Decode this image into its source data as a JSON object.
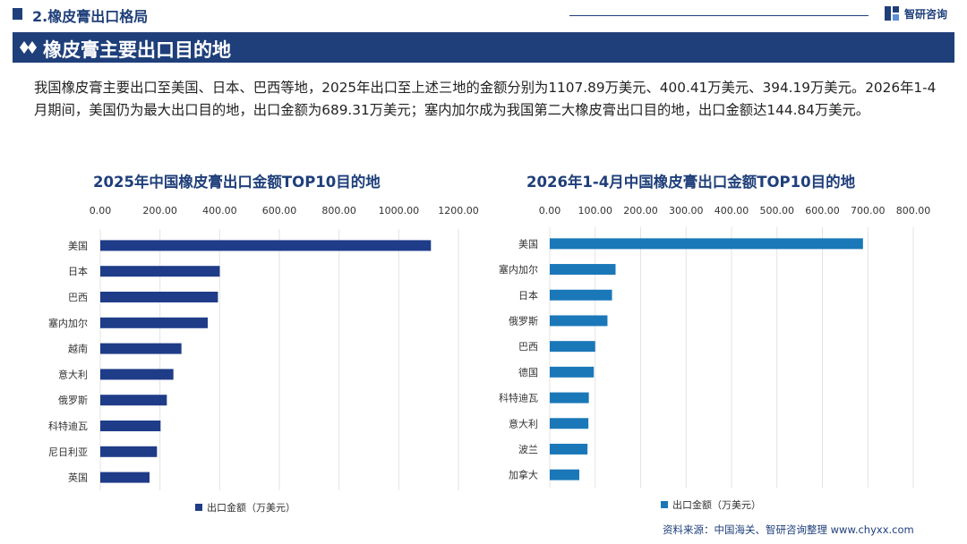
{
  "header": {
    "section_title": "2.橡皮膏出口格局",
    "logo_text": "智研咨询",
    "banner_title": "橡皮膏主要出口目的地"
  },
  "intro_text": "我国橡皮膏主要出口至美国、日本、巴西等地，2025年出口至上述三地的金额分别为1107.89万美元、400.41万美元、394.19万美元。2026年1-4月期间，美国仍为最大出口目的地，出口金额为689.31万美元；塞内加尔成为我国第二大橡皮膏出口目的地，出口金额达144.84万美元。",
  "source_text": "资料来源：中国海关、智研咨询整理   www.chyxx.com",
  "colors": {
    "navy": "#1f3f7a",
    "bar_left": "#1f3c88",
    "bar_right": "#1a78b8"
  },
  "chart_data": [
    {
      "type": "bar",
      "orientation": "horizontal",
      "title": "2025年中国橡皮膏出口金额TOP10目的地",
      "categories": [
        "美国",
        "日本",
        "巴西",
        "塞内加尔",
        "越南",
        "意大利",
        "俄罗斯",
        "科特迪瓦",
        "尼日利亚",
        "英国"
      ],
      "series": [
        {
          "name": "出口金额（万美元）",
          "values": [
            1107.89,
            400.41,
            394.19,
            360,
            272,
            245,
            223,
            202,
            190,
            165
          ]
        }
      ],
      "xlim": [
        0,
        1200
      ],
      "ticks": [
        "0.00",
        "200.00",
        "400.00",
        "600.00",
        "800.00",
        "1000.00",
        "1200.00"
      ],
      "grid": true,
      "legend_position": "bottom"
    },
    {
      "type": "bar",
      "orientation": "horizontal",
      "title": "2026年1-4月中国橡皮膏出口金额TOP10目的地",
      "categories": [
        "美国",
        "塞内加尔",
        "日本",
        "俄罗斯",
        "巴西",
        "德国",
        "科特迪瓦",
        "意大利",
        "波兰",
        "加拿大"
      ],
      "series": [
        {
          "name": "出口金额（万美元）",
          "values": [
            689.31,
            144.84,
            137,
            127,
            100,
            97,
            86,
            85,
            83,
            65
          ]
        }
      ],
      "xlim": [
        0,
        800
      ],
      "ticks": [
        "0.00",
        "100.00",
        "200.00",
        "300.00",
        "400.00",
        "500.00",
        "600.00",
        "700.00",
        "800.00"
      ],
      "grid": true,
      "legend_position": "bottom"
    }
  ]
}
